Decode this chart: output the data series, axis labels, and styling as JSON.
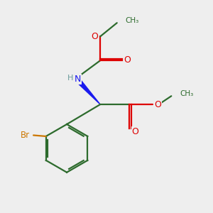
{
  "background_color": "#eeeeee",
  "atom_colors": {
    "C": "#2d6b2d",
    "N": "#1a1aee",
    "O": "#dd0000",
    "Br": "#cc7700",
    "H": "#6a9a9a"
  },
  "bond_color": "#2d6b2d",
  "linewidth": 1.6,
  "figsize": [
    3.0,
    3.0
  ],
  "dpi": 100
}
